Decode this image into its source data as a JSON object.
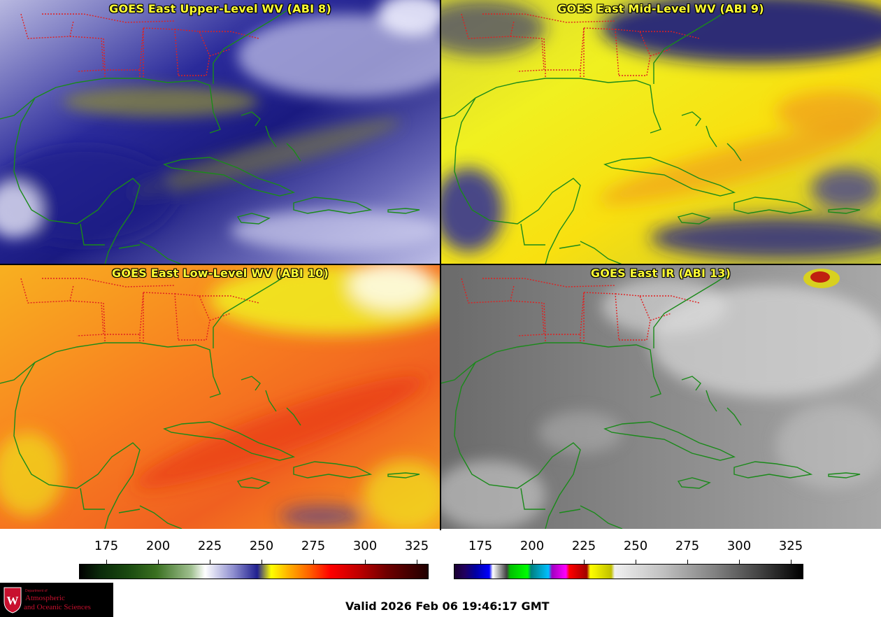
{
  "panels": [
    {
      "title": "GOES East Upper-Level WV (ABI 8)",
      "scheme": "wv"
    },
    {
      "title": "GOES East Mid-Level WV (ABI 9)",
      "scheme": "wv"
    },
    {
      "title": "GOES East Low-Level WV (ABI 10)",
      "scheme": "wv"
    },
    {
      "title": "GOES East IR (ABI 13)",
      "scheme": "ir"
    }
  ],
  "colorbars": [
    {
      "name": "wv-scale",
      "ticks": [
        "175",
        "200",
        "225",
        "250",
        "275",
        "300",
        "325"
      ]
    },
    {
      "name": "ir-scale",
      "ticks": [
        "175",
        "200",
        "225",
        "250",
        "275",
        "300",
        "325"
      ]
    }
  ],
  "logo": {
    "dept": "Department of",
    "line1": "Atmospheric",
    "line2": "and Oceanic Sciences",
    "seal_letter": "W"
  },
  "valid_time": "Valid 2026 Feb 06 19:46:17 GMT",
  "colors": {
    "state_borders": "#e02020",
    "coastline": "#1a8a1a",
    "title_text": "#ffff33"
  }
}
